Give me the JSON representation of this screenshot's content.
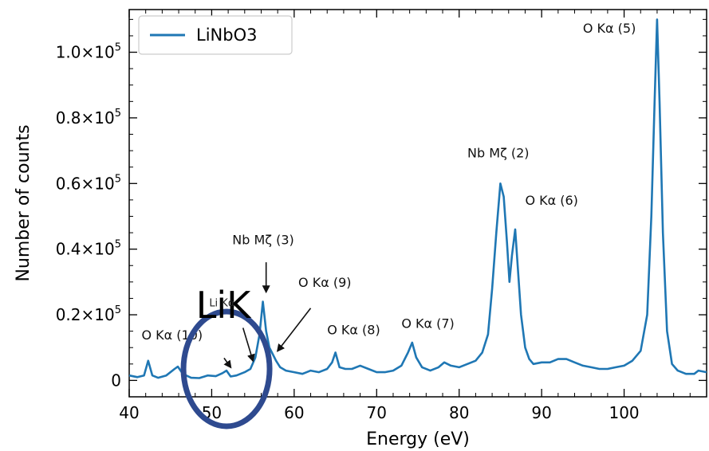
{
  "chart_data": {
    "type": "line",
    "xlabel": "Energy (eV)",
    "ylabel": "Number of counts",
    "xlim": [
      40,
      110
    ],
    "ylim": [
      -5000,
      113000
    ],
    "x_ticks": [
      40,
      50,
      60,
      70,
      80,
      90,
      100
    ],
    "x_tick_labels": [
      "40",
      "50",
      "60",
      "70",
      "80",
      "90",
      "100"
    ],
    "y_ticks": [
      0,
      20000,
      40000,
      60000,
      80000,
      100000
    ],
    "y_tick_labels": [
      {
        "mant": "0",
        "exp": ""
      },
      {
        "mant": "0.2×10",
        "exp": "5"
      },
      {
        "mant": "0.4×10",
        "exp": "5"
      },
      {
        "mant": "0.6×10",
        "exp": "5"
      },
      {
        "mant": "0.8×10",
        "exp": "5"
      },
      {
        "mant": "1.0×10",
        "exp": "5"
      }
    ],
    "grid": false,
    "legend": {
      "placement": "top-left",
      "entries": [
        "LiNbO3"
      ]
    },
    "series": [
      {
        "name": "LiNbO3",
        "color": "#1f77b4",
        "x": [
          40.0,
          41.0,
          41.8,
          42.3,
          42.8,
          43.5,
          44.5,
          45.5,
          45.9,
          46.5,
          47.5,
          48.5,
          49.5,
          50.5,
          51.3,
          51.8,
          52.3,
          53.0,
          54.0,
          54.7,
          55.3,
          55.8,
          56.2,
          56.6,
          57.0,
          57.4,
          57.8,
          58.3,
          59.0,
          60.0,
          61.0,
          62.0,
          63.0,
          64.0,
          64.6,
          65.0,
          65.5,
          66.2,
          67.0,
          68.0,
          69.0,
          70.0,
          71.0,
          72.0,
          73.0,
          73.8,
          74.3,
          74.8,
          75.5,
          76.5,
          77.5,
          78.2,
          79.0,
          80.0,
          81.0,
          82.0,
          82.8,
          83.5,
          84.0,
          84.5,
          85.0,
          85.4,
          85.8,
          86.1,
          86.4,
          86.8,
          87.1,
          87.5,
          88.0,
          88.5,
          89.0,
          90.0,
          91.0,
          92.0,
          93.0,
          94.0,
          95.0,
          96.0,
          97.0,
          98.0,
          99.0,
          100.0,
          101.0,
          102.0,
          102.8,
          103.3,
          103.7,
          104.0,
          104.3,
          104.7,
          105.2,
          105.8,
          106.5,
          107.5,
          108.5,
          109.0,
          110.0
        ],
        "y": [
          1500,
          1000,
          1500,
          6000,
          1500,
          800,
          1500,
          3500,
          4200,
          2000,
          800,
          700,
          1500,
          1300,
          2200,
          3000,
          1200,
          1500,
          2500,
          3500,
          7000,
          14000,
          24000,
          15000,
          10000,
          8000,
          6000,
          4000,
          3000,
          2500,
          2000,
          3000,
          2500,
          3500,
          5500,
          8500,
          4000,
          3500,
          3500,
          4500,
          3500,
          2500,
          2500,
          3000,
          4500,
          8500,
          11500,
          7000,
          4000,
          3000,
          4000,
          5500,
          4500,
          4000,
          5000,
          6000,
          8500,
          14000,
          28000,
          45000,
          60000,
          56000,
          42000,
          30000,
          38000,
          46000,
          35000,
          20000,
          10000,
          6500,
          5000,
          5500,
          5500,
          6500,
          6500,
          5500,
          4500,
          4000,
          3500,
          3500,
          4000,
          4500,
          6000,
          9000,
          20000,
          50000,
          85000,
          110000,
          85000,
          45000,
          15000,
          5000,
          3000,
          2000,
          2000,
          3000,
          2500
        ]
      }
    ],
    "annotations": [
      {
        "text": "O Kα (5)",
        "x": 95,
        "y": 106000
      },
      {
        "text": "Nb Mζ (2)",
        "x": 81,
        "y": 68000
      },
      {
        "text": "O Kα (6)",
        "x": 88,
        "y": 53500
      },
      {
        "text": "Nb Mζ (3)",
        "x": 52.5,
        "y": 41500
      },
      {
        "text": "O Kα (9)",
        "x": 60.5,
        "y": 28500
      },
      {
        "text": "O Kα (8)",
        "x": 64,
        "y": 14000
      },
      {
        "text": "O Kα (7)",
        "x": 73,
        "y": 16000
      },
      {
        "text": "O Kα (10)",
        "x": 41.5,
        "y": 12500
      }
    ],
    "arrows": [
      {
        "from": [
          56.6,
          36000
        ],
        "to": [
          56.6,
          27000
        ]
      },
      {
        "from": [
          62,
          22000
        ],
        "to": [
          58.0,
          9000
        ]
      },
      {
        "from": [
          53.8,
          16000
        ],
        "to": [
          55.0,
          6000
        ]
      },
      {
        "from": [
          51.5,
          6800
        ],
        "to": [
          52.3,
          4000
        ]
      }
    ]
  },
  "overlay": {
    "li_k_label": "LiK",
    "li_k_small": "Li Kα",
    "circle_color": "#2e4a8f"
  }
}
